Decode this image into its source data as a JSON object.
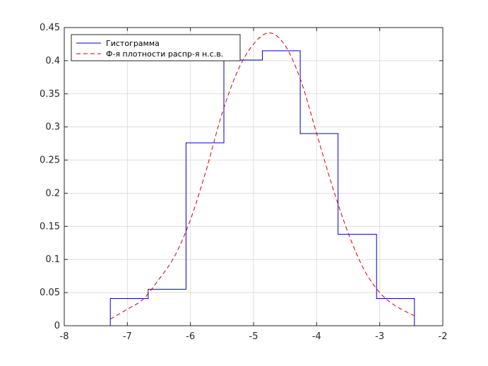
{
  "chart_data": {
    "type": "line",
    "xlim": [
      -8,
      -2
    ],
    "ylim": [
      0,
      0.45
    ],
    "x_ticks": [
      -8,
      -7,
      -6,
      -5,
      -4,
      -3,
      -2
    ],
    "y_ticks": [
      0,
      0.05,
      0.1,
      0.15,
      0.2,
      0.25,
      0.3,
      0.35,
      0.4,
      0.45
    ],
    "x_tick_labels": [
      "-8",
      "-7",
      "-6",
      "-5",
      "-4",
      "-3",
      "-2"
    ],
    "y_tick_labels": [
      "0",
      "0.05",
      "0.1",
      "0.15",
      "0.2",
      "0.25",
      "0.3",
      "0.35",
      "0.4",
      "0.45"
    ],
    "grid": true,
    "legend_position": "top-left",
    "series": [
      {
        "name": "Гистограмма",
        "style": "solid-step",
        "color": "#0000cc",
        "bin_edges": [
          -7.27,
          -6.67,
          -6.07,
          -5.47,
          -4.86,
          -4.26,
          -3.66,
          -3.05,
          -2.45
        ],
        "values": [
          0.041,
          0.055,
          0.276,
          0.401,
          0.415,
          0.29,
          0.138,
          0.041
        ]
      },
      {
        "name": "Ф-я плотности распр-я н.с.в.",
        "style": "dashed",
        "color": "#cc0000",
        "x": [
          -7.27,
          -7.0,
          -6.75,
          -6.5,
          -6.25,
          -6.0,
          -5.75,
          -5.5,
          -5.25,
          -5.0,
          -4.75,
          -4.5,
          -4.25,
          -4.0,
          -3.75,
          -3.5,
          -3.25,
          -3.0,
          -2.75,
          -2.45
        ],
        "y": [
          0.01,
          0.025,
          0.04,
          0.07,
          0.105,
          0.16,
          0.235,
          0.32,
          0.385,
          0.425,
          0.442,
          0.423,
          0.37,
          0.29,
          0.21,
          0.14,
          0.085,
          0.05,
          0.03,
          0.015
        ]
      }
    ]
  }
}
